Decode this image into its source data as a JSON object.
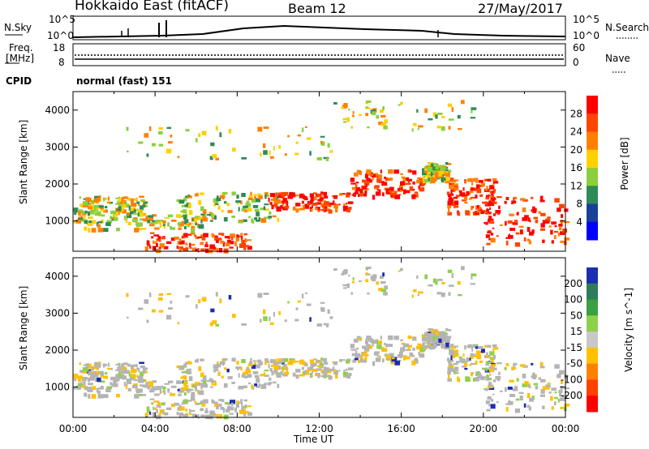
{
  "header": {
    "radar_title": "Hokkaido East (fitACF)",
    "beam": "Beam 12",
    "date": "27/May/2017"
  },
  "strip_labels": {
    "nsky": "N.Sky",
    "nsearch": "N.Search",
    "nsky_ticks": [
      "10^5",
      "10^0"
    ],
    "nsearch_ticks": [
      "10^5",
      "10^0"
    ],
    "freq_line1": "Freq.",
    "freq_line2": "[MHz]",
    "freq_ticks": [
      "18",
      "8"
    ],
    "nave": "Nave",
    "nave_ticks": [
      "60",
      "0"
    ],
    "cpid": "CPID",
    "cpid_value": "normal (fast) 151"
  },
  "chart_data": [
    {
      "type": "heatmap",
      "title": "",
      "xlabel": "",
      "ylabel": "Slant Range [km]",
      "x_range_hours": [
        0,
        24
      ],
      "ylim": [
        180,
        4500
      ],
      "yticks": [
        "1000",
        "2000",
        "3000",
        "4000"
      ],
      "colorbar_label": "Power [dB]",
      "colorbar_ticks": [
        "28",
        "24",
        "20",
        "16",
        "12",
        "8",
        "4"
      ],
      "colorbar_colors": [
        "#ff0000",
        "#ff4400",
        "#ff8000",
        "#ffd000",
        "#8ccf3c",
        "#2e8b57",
        "#1a3f9a",
        "#0000ff"
      ]
    },
    {
      "type": "heatmap",
      "title": "",
      "xlabel": "Time UT",
      "ylabel": "Slant Range [km]",
      "x_range_hours": [
        0,
        24
      ],
      "xticks": [
        "00:00",
        "04:00",
        "08:00",
        "12:00",
        "16:00",
        "20:00",
        "00:00"
      ],
      "ylim": [
        180,
        4500
      ],
      "yticks": [
        "1000",
        "2000",
        "3000",
        "4000"
      ],
      "colorbar_label": "Velocity [m s^-1]",
      "colorbar_ticks": [
        "200",
        "100",
        "50",
        "15",
        "-15",
        "-50",
        "-100",
        "-200"
      ],
      "colorbar_colors": [
        "#1a2fb0",
        "#2e7d5a",
        "#3aa040",
        "#8fd04a",
        "#c8c8c8",
        "#ffc000",
        "#ff8000",
        "#ff4000",
        "#ff0000"
      ],
      "ground_scatter_color": "#b4b4b4"
    }
  ]
}
